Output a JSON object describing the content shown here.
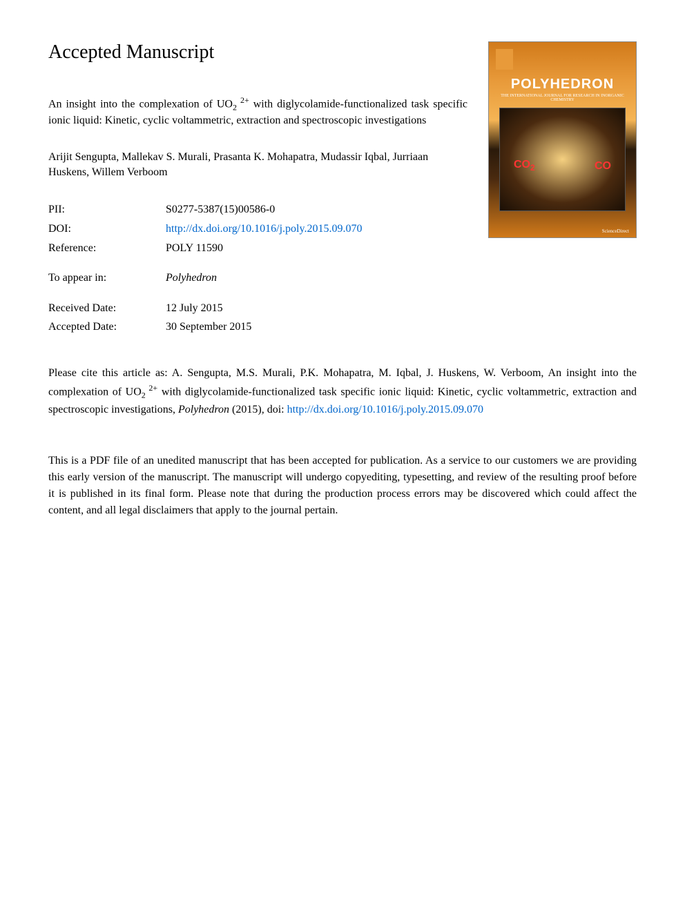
{
  "main_title": "Accepted Manuscript",
  "article_title_parts": {
    "prefix": "An insight into the complexation of UO",
    "sub1": "2",
    "sup1": " 2+",
    "suffix": " with diglycolamide-functionalized task specific ionic liquid: Kinetic, cyclic voltammetric, extraction and spectroscopic investigations"
  },
  "authors": "Arijit Sengupta, Mallekav S. Murali, Prasanta K. Mohapatra, Mudassir Iqbal, Jurriaan Huskens, Willem Verboom",
  "metadata": {
    "pii_label": "PII:",
    "pii_value": "S0277-5387(15)00586-0",
    "doi_label": "DOI:",
    "doi_value": "http://dx.doi.org/10.1016/j.poly.2015.09.070",
    "ref_label": "Reference:",
    "ref_value": "POLY 11590",
    "appear_label": "To appear in:",
    "appear_value": "Polyhedron",
    "received_label": "Received Date:",
    "received_value": "12 July 2015",
    "accepted_label": "Accepted Date:",
    "accepted_value": "30 September 2015"
  },
  "journal_cover": {
    "title": "POLYHEDRON",
    "subtitle": "THE INTERNATIONAL JOURNAL FOR RESEARCH IN INORGANIC CHEMISTRY",
    "co2_label": "CO",
    "co_label": "CO",
    "footer": "ScienceDirect"
  },
  "citation": {
    "prefix": "Please cite this article as: A. Sengupta, M.S. Murali, P.K. Mohapatra, M. Iqbal, J. Huskens, W. Verboom, An insight into the complexation of UO",
    "sub1": "2",
    "sup1": " 2+",
    "middle": " with diglycolamide-functionalized task specific ionic liquid: Kinetic, cyclic voltammetric, extraction and spectroscopic investigations, ",
    "journal": "Polyhedron",
    "year": " (2015), doi: ",
    "link": "http://dx.doi.org/10.1016/j.poly.2015.09.070"
  },
  "disclaimer": "This is a PDF file of an unedited manuscript that has been accepted for publication. As a service to our customers we are providing this early version of the manuscript. The manuscript will undergo copyediting, typesetting, and review of the resulting proof before it is published in its final form. Please note that during the production process errors may be discovered which could affect the content, and all legal disclaimers that apply to the journal pertain.",
  "colors": {
    "link_color": "#0066cc",
    "text_color": "#000000",
    "background": "#ffffff"
  }
}
